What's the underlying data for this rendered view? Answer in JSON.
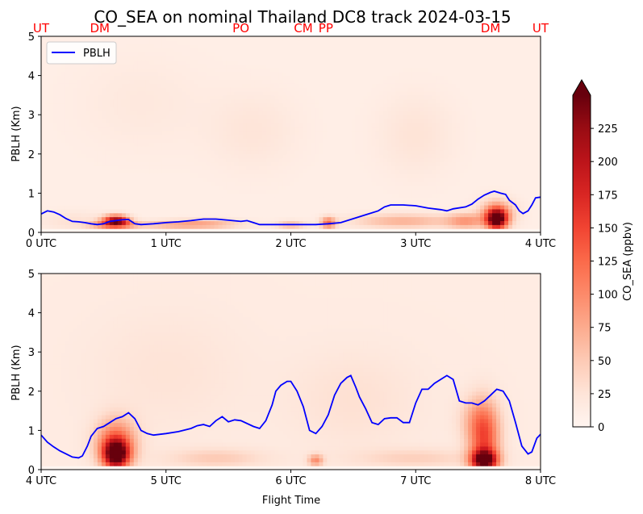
{
  "chart_data": {
    "type": "heatmap",
    "title": "CO_SEA on nominal Thailand DC8 track 2024-03-15",
    "xlabel": "Flight Time",
    "ylabel": "PBLH (Km)",
    "ylim": [
      0,
      5
    ],
    "yticks": [
      "0",
      "1",
      "2",
      "3",
      "4",
      "5"
    ],
    "legend": {
      "label": "PBLH",
      "color": "#0000ff",
      "placement": "upper-left"
    },
    "colorbar": {
      "label": "CO_SEA (ppbv)",
      "ticks": [
        "0",
        "25",
        "50",
        "75",
        "100",
        "125",
        "150",
        "175",
        "200",
        "225"
      ],
      "range": [
        0,
        250
      ],
      "extend": "max",
      "colormap": "Reds"
    },
    "locations": [
      {
        "name": "UT",
        "hour": 0.0
      },
      {
        "name": "DM",
        "hour": 0.47
      },
      {
        "name": "PO",
        "hour": 1.6
      },
      {
        "name": "CM",
        "hour": 2.1
      },
      {
        "name": "PP",
        "hour": 2.28
      },
      {
        "name": "DM",
        "hour": 3.6
      },
      {
        "name": "UT",
        "hour": 4.0
      }
    ],
    "location_color": "#ff0000",
    "panels": [
      {
        "xlim": [
          0,
          4
        ],
        "xticks": [
          "0 UTC",
          "1 UTC",
          "2 UTC",
          "3 UTC",
          "4 UTC"
        ],
        "pblh": [
          [
            0.0,
            0.47
          ],
          [
            0.05,
            0.55
          ],
          [
            0.1,
            0.52
          ],
          [
            0.15,
            0.45
          ],
          [
            0.2,
            0.35
          ],
          [
            0.25,
            0.28
          ],
          [
            0.3,
            0.27
          ],
          [
            0.35,
            0.25
          ],
          [
            0.4,
            0.22
          ],
          [
            0.45,
            0.2
          ],
          [
            0.5,
            0.22
          ],
          [
            0.55,
            0.28
          ],
          [
            0.6,
            0.3
          ],
          [
            0.65,
            0.32
          ],
          [
            0.7,
            0.33
          ],
          [
            0.75,
            0.22
          ],
          [
            0.8,
            0.2
          ],
          [
            0.9,
            0.22
          ],
          [
            1.0,
            0.25
          ],
          [
            1.1,
            0.27
          ],
          [
            1.2,
            0.3
          ],
          [
            1.3,
            0.34
          ],
          [
            1.4,
            0.34
          ],
          [
            1.5,
            0.31
          ],
          [
            1.6,
            0.28
          ],
          [
            1.65,
            0.3
          ],
          [
            1.7,
            0.25
          ],
          [
            1.75,
            0.2
          ],
          [
            1.8,
            0.2
          ],
          [
            2.0,
            0.2
          ],
          [
            2.2,
            0.2
          ],
          [
            2.3,
            0.22
          ],
          [
            2.4,
            0.25
          ],
          [
            2.5,
            0.35
          ],
          [
            2.6,
            0.45
          ],
          [
            2.7,
            0.55
          ],
          [
            2.75,
            0.65
          ],
          [
            2.8,
            0.7
          ],
          [
            2.9,
            0.7
          ],
          [
            3.0,
            0.68
          ],
          [
            3.1,
            0.62
          ],
          [
            3.2,
            0.58
          ],
          [
            3.25,
            0.55
          ],
          [
            3.3,
            0.6
          ],
          [
            3.4,
            0.65
          ],
          [
            3.45,
            0.72
          ],
          [
            3.5,
            0.85
          ],
          [
            3.55,
            0.95
          ],
          [
            3.6,
            1.02
          ],
          [
            3.63,
            1.05
          ],
          [
            3.68,
            1.0
          ],
          [
            3.72,
            0.97
          ],
          [
            3.75,
            0.82
          ],
          [
            3.8,
            0.7
          ],
          [
            3.83,
            0.55
          ],
          [
            3.86,
            0.48
          ],
          [
            3.9,
            0.55
          ],
          [
            3.93,
            0.7
          ],
          [
            3.96,
            0.88
          ],
          [
            4.0,
            0.9
          ]
        ],
        "blobs": [
          [
            0.6,
            0.32,
            0.1,
            0.13,
            200
          ],
          [
            0.58,
            0.2,
            0.18,
            0.1,
            110
          ],
          [
            1.3,
            0.22,
            0.3,
            0.12,
            65
          ],
          [
            1.0,
            0.2,
            0.25,
            0.1,
            40
          ],
          [
            2.0,
            0.2,
            0.12,
            0.1,
            55
          ],
          [
            2.3,
            0.25,
            0.06,
            0.15,
            110
          ],
          [
            2.9,
            0.3,
            0.4,
            0.18,
            60
          ],
          [
            3.4,
            0.3,
            0.15,
            0.2,
            70
          ],
          [
            3.65,
            0.35,
            0.08,
            0.25,
            240
          ],
          [
            3.65,
            0.5,
            0.14,
            0.35,
            80
          ],
          [
            0.25,
            0.3,
            0.25,
            0.25,
            18
          ],
          [
            1.7,
            2.6,
            0.35,
            1.0,
            14
          ],
          [
            3.0,
            2.5,
            0.3,
            1.0,
            16
          ],
          [
            0.8,
            3.3,
            0.5,
            1.2,
            9
          ]
        ],
        "background": 10
      },
      {
        "xlim": [
          4,
          8
        ],
        "xticks": [
          "4 UTC",
          "5 UTC",
          "6 UTC",
          "7 UTC",
          "8 UTC"
        ],
        "pblh": [
          [
            4.0,
            0.88
          ],
          [
            4.05,
            0.7
          ],
          [
            4.1,
            0.58
          ],
          [
            4.15,
            0.48
          ],
          [
            4.2,
            0.4
          ],
          [
            4.25,
            0.32
          ],
          [
            4.3,
            0.3
          ],
          [
            4.33,
            0.35
          ],
          [
            4.37,
            0.6
          ],
          [
            4.4,
            0.85
          ],
          [
            4.45,
            1.05
          ],
          [
            4.5,
            1.1
          ],
          [
            4.55,
            1.2
          ],
          [
            4.6,
            1.3
          ],
          [
            4.65,
            1.35
          ],
          [
            4.7,
            1.45
          ],
          [
            4.75,
            1.3
          ],
          [
            4.8,
            1.0
          ],
          [
            4.85,
            0.92
          ],
          [
            4.9,
            0.88
          ],
          [
            5.0,
            0.92
          ],
          [
            5.1,
            0.97
          ],
          [
            5.2,
            1.05
          ],
          [
            5.25,
            1.12
          ],
          [
            5.3,
            1.15
          ],
          [
            5.35,
            1.1
          ],
          [
            5.4,
            1.25
          ],
          [
            5.45,
            1.35
          ],
          [
            5.5,
            1.22
          ],
          [
            5.55,
            1.27
          ],
          [
            5.6,
            1.25
          ],
          [
            5.7,
            1.1
          ],
          [
            5.75,
            1.05
          ],
          [
            5.8,
            1.25
          ],
          [
            5.85,
            1.65
          ],
          [
            5.88,
            2.0
          ],
          [
            5.92,
            2.15
          ],
          [
            5.97,
            2.25
          ],
          [
            6.0,
            2.25
          ],
          [
            6.05,
            2.0
          ],
          [
            6.1,
            1.6
          ],
          [
            6.15,
            1.0
          ],
          [
            6.2,
            0.92
          ],
          [
            6.25,
            1.1
          ],
          [
            6.3,
            1.4
          ],
          [
            6.35,
            1.9
          ],
          [
            6.4,
            2.2
          ],
          [
            6.45,
            2.35
          ],
          [
            6.48,
            2.4
          ],
          [
            6.52,
            2.1
          ],
          [
            6.55,
            1.85
          ],
          [
            6.6,
            1.55
          ],
          [
            6.65,
            1.2
          ],
          [
            6.7,
            1.15
          ],
          [
            6.75,
            1.3
          ],
          [
            6.8,
            1.32
          ],
          [
            6.85,
            1.32
          ],
          [
            6.9,
            1.2
          ],
          [
            6.95,
            1.2
          ],
          [
            7.0,
            1.7
          ],
          [
            7.05,
            2.05
          ],
          [
            7.1,
            2.05
          ],
          [
            7.15,
            2.2
          ],
          [
            7.2,
            2.3
          ],
          [
            7.25,
            2.4
          ],
          [
            7.3,
            2.3
          ],
          [
            7.35,
            1.75
          ],
          [
            7.4,
            1.7
          ],
          [
            7.45,
            1.7
          ],
          [
            7.5,
            1.65
          ],
          [
            7.55,
            1.75
          ],
          [
            7.6,
            1.9
          ],
          [
            7.65,
            2.05
          ],
          [
            7.7,
            2.0
          ],
          [
            7.75,
            1.75
          ],
          [
            7.8,
            1.2
          ],
          [
            7.85,
            0.6
          ],
          [
            7.9,
            0.4
          ],
          [
            7.93,
            0.45
          ],
          [
            7.97,
            0.8
          ],
          [
            8.0,
            0.9
          ]
        ],
        "blobs": [
          [
            4.6,
            0.4,
            0.1,
            0.35,
            230
          ],
          [
            4.6,
            0.7,
            0.16,
            0.6,
            110
          ],
          [
            5.4,
            0.3,
            0.4,
            0.25,
            35
          ],
          [
            6.2,
            0.25,
            0.06,
            0.15,
            80
          ],
          [
            7.0,
            0.3,
            0.5,
            0.25,
            30
          ],
          [
            7.55,
            0.7,
            0.12,
            0.9,
            120
          ],
          [
            7.55,
            0.25,
            0.1,
            0.25,
            200
          ],
          [
            7.5,
            1.3,
            0.15,
            0.6,
            45
          ],
          [
            5.0,
            2.5,
            0.6,
            1.5,
            12
          ],
          [
            6.5,
            1.8,
            0.5,
            1.2,
            16
          ]
        ],
        "background": 14
      }
    ]
  }
}
